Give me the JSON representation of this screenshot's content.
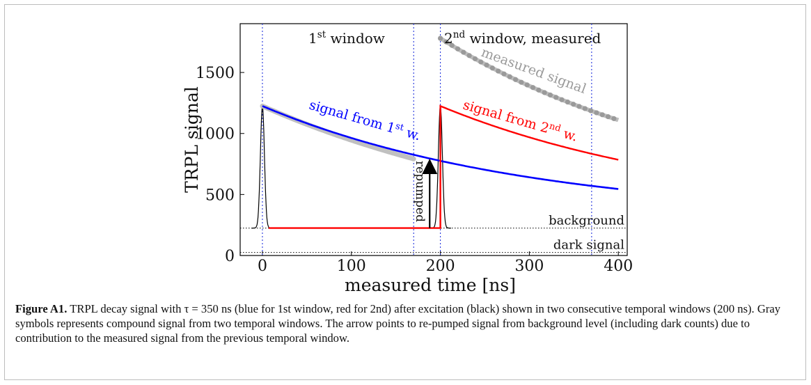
{
  "chart_data": {
    "type": "line",
    "xlabel": "measured time [ns]",
    "ylabel": "TRPL signal",
    "xlim": [
      -25,
      410
    ],
    "ylim": [
      0,
      1900
    ],
    "xticks": [
      0,
      100,
      200,
      300,
      400
    ],
    "yticks": [
      0,
      500,
      1000,
      1500
    ],
    "grid": false,
    "vlines": [
      0,
      170,
      200,
      370
    ],
    "hlines": [
      {
        "y": 225,
        "label": "background"
      },
      {
        "y": 25,
        "label": "dark signal"
      }
    ],
    "series": [
      {
        "name": "signal from 1st w.",
        "color": "#0000ff",
        "tau_ns": 350,
        "x": [
          0,
          50,
          100,
          150,
          200,
          250,
          300,
          350,
          400
        ],
        "y": [
          1225,
          1080,
          950,
          835,
          785,
          690,
          607,
          570,
          545
        ]
      },
      {
        "name": "signal from 2nd w.",
        "color": "#ff0000",
        "x": [
          0,
          200,
          200,
          250,
          300,
          350,
          400
        ],
        "y": [
          225,
          225,
          1225,
          1080,
          950,
          850,
          785
        ]
      },
      {
        "name": "measured signal",
        "color": "#999999",
        "x": [
          200,
          250,
          300,
          350,
          400
        ],
        "y": [
          1780,
          1570,
          1385,
          1225,
          1110
        ]
      },
      {
        "name": "excitation",
        "color": "#000000",
        "peaks_at": [
          0,
          200
        ],
        "peak_value": 1225,
        "base": 225
      }
    ],
    "annotations": [
      {
        "text_main": "1",
        "text_sup": "st",
        "text_rest": " window"
      },
      {
        "text_main": "2",
        "text_sup": "nd",
        "text_rest": " window, measured"
      },
      {
        "text": "measured signal"
      },
      {
        "text_main": "signal from 1",
        "text_sup": "st",
        "text_rest": " w."
      },
      {
        "text_main": "signal from 2",
        "text_sup": "nd",
        "text_rest": " w."
      },
      {
        "text": "repumped"
      }
    ]
  },
  "caption": {
    "label": "Figure A1.",
    "text": "TRPL decay signal with τ = 350 ns (blue for 1st window, red for 2nd) after excitation (black) shown in two consecutive temporal windows (200 ns). Gray symbols represents compound signal from two temporal windows. The arrow points to re-pumped signal from background level (including dark counts) due to contribution to the measured signal from the previous temporal window."
  }
}
